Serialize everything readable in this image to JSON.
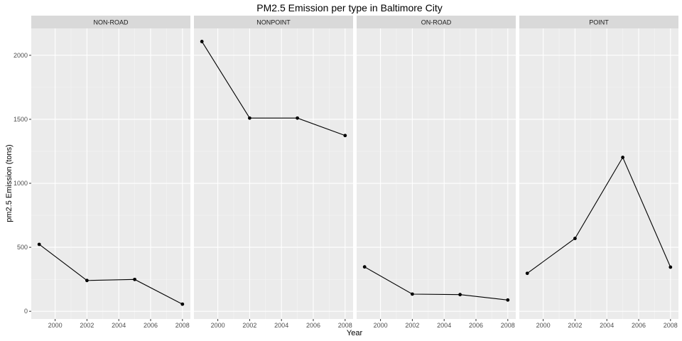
{
  "chart_data": {
    "type": "line",
    "title": "PM2.5 Emission per type in Baltimore City",
    "xlabel": "Year",
    "ylabel": "pm2.5 Emission (tons)",
    "x": [
      1999,
      2002,
      2005,
      2008
    ],
    "xticks": [
      2000,
      2002,
      2004,
      2006,
      2008
    ],
    "xlim": [
      1998.5,
      2008.5
    ],
    "yticks": [
      0,
      500,
      1000,
      1500,
      2000
    ],
    "ylim": [
      -60,
      2210
    ],
    "grid": true,
    "panels": [
      {
        "strip": "NON-ROAD",
        "values": [
          522.94,
          240.85,
          248.93,
          55.82
        ]
      },
      {
        "strip": "NONPOINT",
        "values": [
          2107.63,
          1509.5,
          1509.5,
          1373.21
        ]
      },
      {
        "strip": "ON-ROAD",
        "values": [
          346.82,
          134.31,
          130.43,
          88.28
        ]
      },
      {
        "strip": "POINT",
        "values": [
          296.8,
          569.26,
          1202.49,
          344.98
        ]
      }
    ],
    "colors": {
      "panel_bg": "#ebebeb",
      "strip_bg": "#d9d9d9",
      "grid_major": "#ffffff",
      "line": "#000000"
    }
  }
}
